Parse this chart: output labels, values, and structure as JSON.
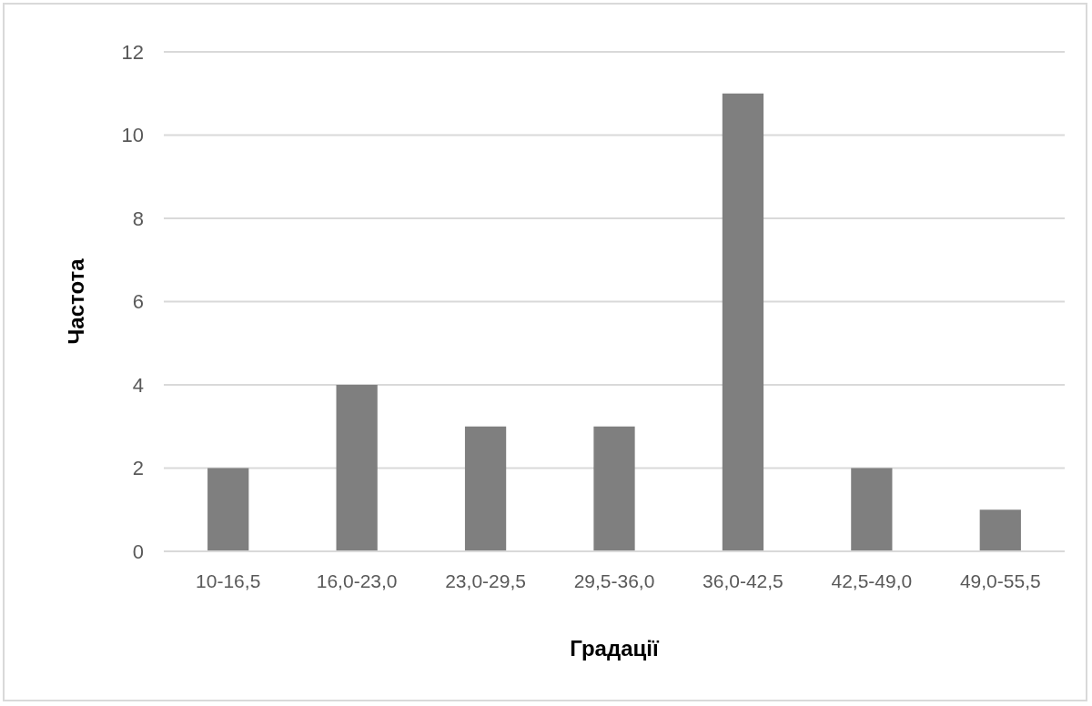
{
  "chart_data": {
    "type": "bar",
    "xlabel": "Градації",
    "ylabel": "Частота",
    "categories": [
      "10-16,5",
      "16,0-23,0",
      "23,0-29,5",
      "29,5-36,0",
      "36,0-42,5",
      "42,5-49,0",
      "49,0-55,5"
    ],
    "values": [
      2,
      4,
      3,
      3,
      11,
      2,
      1
    ],
    "color": "#7f7f7f",
    "ylim": [
      0,
      12
    ],
    "yticks": [
      0,
      2,
      4,
      6,
      8,
      10,
      12
    ],
    "grid": "y"
  }
}
